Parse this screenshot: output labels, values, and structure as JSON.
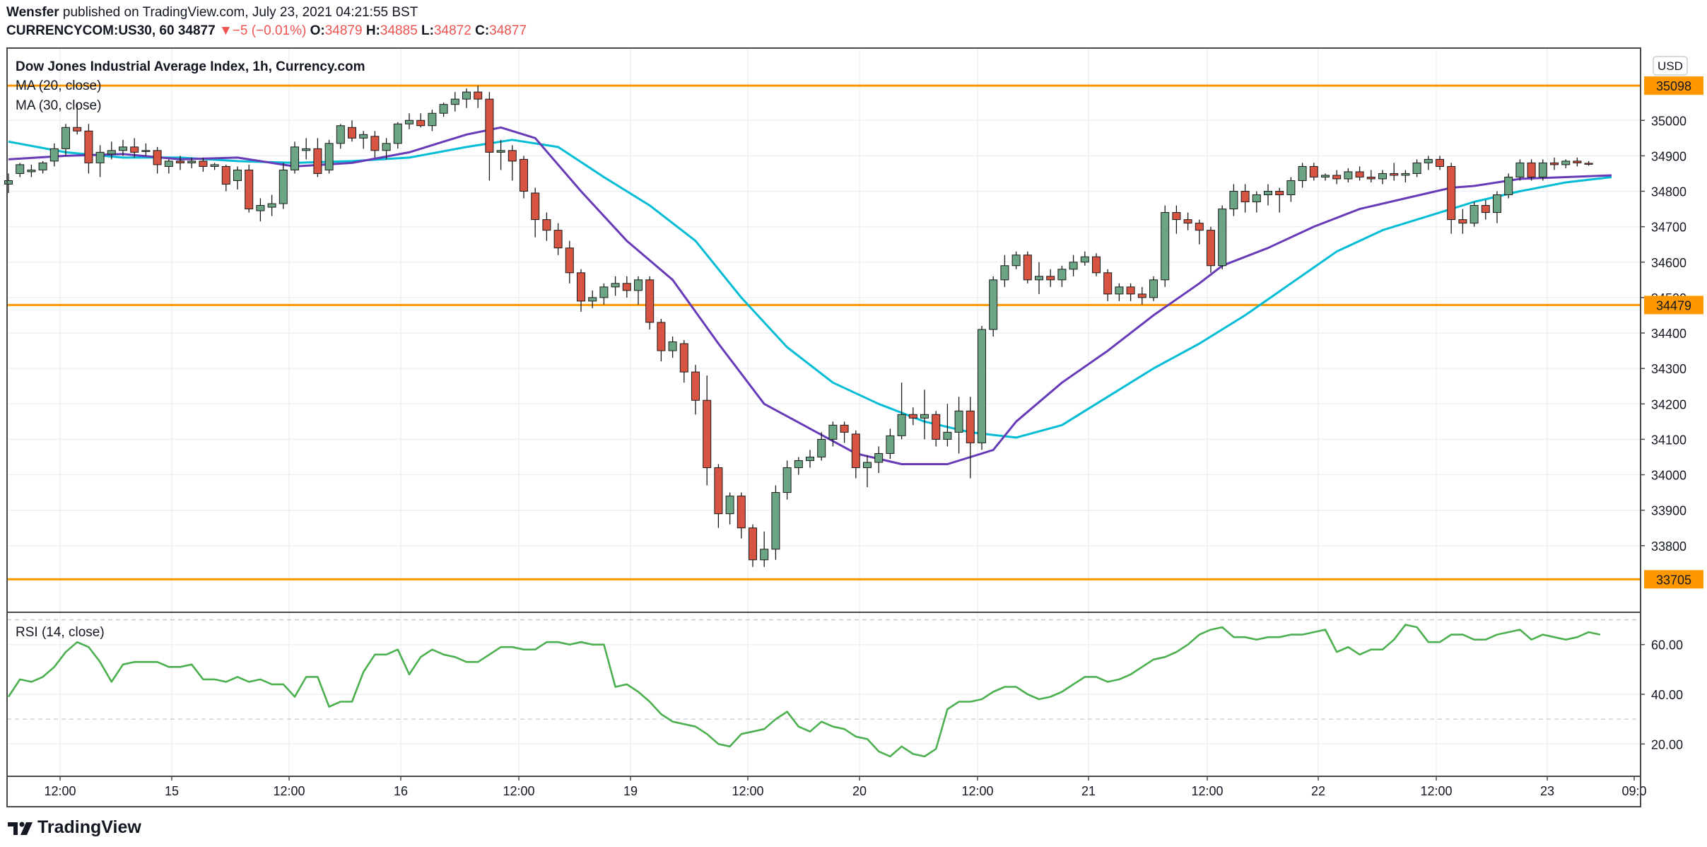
{
  "header": {
    "author": "Wensfer",
    "published_text": "published on TradingView.com, July 23, 2021 04:21:55 BST",
    "symbol": "CURRENCYCOM:US30, 60",
    "last": "34877",
    "change": "−5 (−0.01%)",
    "o_label": "O:",
    "o_value": "34879",
    "h_label": "H:",
    "h_value": "34885",
    "l_label": "L:",
    "l_value": "34872",
    "c_label": "C:",
    "c_value": "34877"
  },
  "legend": {
    "title": "Dow Jones Industrial Average Index, 1h, Currency.com",
    "ma20": "MA (20, close)",
    "ma30": "MA (30, close)",
    "rsi": "RSI (14, close)"
  },
  "currency_badge": "USD",
  "footer": {
    "logo_text": "TradingView"
  },
  "colors": {
    "up": "#6ba583",
    "down": "#d75442",
    "ma20": "#673ab7",
    "ma30": "#00bcd4",
    "rsi": "#4caf50",
    "hline": "#ff9800",
    "grid": "#eef0f3",
    "border": "#4a4a4a",
    "text": "#131722"
  },
  "chart_data": {
    "type": "candlestick",
    "price_axis_ticks": [
      34900,
      34800,
      34700,
      34600,
      34500,
      34400,
      34300,
      34200,
      34100,
      34000,
      33900,
      33800,
      35000
    ],
    "price_axis_labels": [
      "34900",
      "34800",
      "34700",
      "34600",
      "34500",
      "34400",
      "34300",
      "34200",
      "34100",
      "34000",
      "33900",
      "33800",
      "35000"
    ],
    "ylim": [
      33612,
      35204
    ],
    "horizontal_levels": [
      35098,
      34479,
      33705
    ],
    "horizontal_level_labels": [
      "35098",
      "34479",
      "33705"
    ],
    "time_axis_labels": [
      "12:00",
      "15",
      "12:00",
      "16",
      "12:00",
      "19",
      "12:00",
      "20",
      "12:00",
      "21",
      "12:00",
      "22",
      "12:00",
      "23",
      "09:0"
    ],
    "candles": [
      [
        34820,
        34850,
        34795,
        34830
      ],
      [
        34850,
        34880,
        34840,
        34875
      ],
      [
        34855,
        34875,
        34840,
        34860
      ],
      [
        34860,
        34885,
        34850,
        34880
      ],
      [
        34885,
        34935,
        34870,
        34920
      ],
      [
        34920,
        34990,
        34900,
        34980
      ],
      [
        34980,
        35050,
        34960,
        34970
      ],
      [
        34970,
        34990,
        34850,
        34880
      ],
      [
        34880,
        34930,
        34840,
        34910
      ],
      [
        34905,
        34940,
        34890,
        34915
      ],
      [
        34915,
        34945,
        34900,
        34925
      ],
      [
        34925,
        34950,
        34895,
        34910
      ],
      [
        34915,
        34935,
        34900,
        34915
      ],
      [
        34915,
        34925,
        34850,
        34875
      ],
      [
        34870,
        34890,
        34850,
        34885
      ],
      [
        34885,
        34900,
        34860,
        34880
      ],
      [
        34880,
        34895,
        34865,
        34885
      ],
      [
        34885,
        34895,
        34855,
        34870
      ],
      [
        34870,
        34880,
        34860,
        34875
      ],
      [
        34870,
        34875,
        34800,
        34820
      ],
      [
        34830,
        34870,
        34805,
        34860
      ],
      [
        34860,
        34875,
        34740,
        34750
      ],
      [
        34745,
        34780,
        34715,
        34760
      ],
      [
        34755,
        34790,
        34730,
        34765
      ],
      [
        34765,
        34880,
        34750,
        34860
      ],
      [
        34860,
        34940,
        34850,
        34925
      ],
      [
        34915,
        34950,
        34890,
        34920
      ],
      [
        34920,
        34950,
        34840,
        34850
      ],
      [
        34860,
        34945,
        34850,
        34935
      ],
      [
        34935,
        34990,
        34920,
        34985
      ],
      [
        34980,
        35000,
        34940,
        34950
      ],
      [
        34950,
        34970,
        34920,
        34960
      ],
      [
        34955,
        34970,
        34895,
        34915
      ],
      [
        34915,
        34950,
        34890,
        34935
      ],
      [
        34935,
        34995,
        34920,
        34990
      ],
      [
        34990,
        35020,
        34975,
        35000
      ],
      [
        35000,
        35020,
        34980,
        34985
      ],
      [
        34985,
        35030,
        34970,
        35020
      ],
      [
        35020,
        35050,
        35010,
        35045
      ],
      [
        35045,
        35080,
        35025,
        35060
      ],
      [
        35060,
        35090,
        35035,
        35080
      ],
      [
        35080,
        35098,
        35035,
        35060
      ],
      [
        35060,
        35080,
        34830,
        34910
      ],
      [
        34910,
        34945,
        34860,
        34915
      ],
      [
        34915,
        34930,
        34830,
        34885
      ],
      [
        34890,
        34900,
        34780,
        34800
      ],
      [
        34795,
        34810,
        34670,
        34720
      ],
      [
        34720,
        34740,
        34660,
        34690
      ],
      [
        34690,
        34710,
        34620,
        34640
      ],
      [
        34640,
        34660,
        34540,
        34570
      ],
      [
        34570,
        34580,
        34460,
        34490
      ],
      [
        34490,
        34520,
        34470,
        34500
      ],
      [
        34500,
        34540,
        34480,
        34530
      ],
      [
        34530,
        34560,
        34505,
        34540
      ],
      [
        34540,
        34560,
        34500,
        34520
      ],
      [
        34520,
        34560,
        34480,
        34550
      ],
      [
        34550,
        34560,
        34410,
        34430
      ],
      [
        34430,
        34440,
        34320,
        34350
      ],
      [
        34350,
        34390,
        34330,
        34375
      ],
      [
        34370,
        34380,
        34260,
        34290
      ],
      [
        34290,
        34310,
        34170,
        34210
      ],
      [
        34210,
        34280,
        33970,
        34020
      ],
      [
        34020,
        34030,
        33850,
        33890
      ],
      [
        33890,
        33950,
        33860,
        33940
      ],
      [
        33940,
        33950,
        33820,
        33850
      ],
      [
        33850,
        33860,
        33740,
        33760
      ],
      [
        33760,
        33840,
        33740,
        33790
      ],
      [
        33790,
        33970,
        33760,
        33950
      ],
      [
        33950,
        34040,
        33930,
        34020
      ],
      [
        34020,
        34050,
        34000,
        34040
      ],
      [
        34040,
        34070,
        34020,
        34050
      ],
      [
        34050,
        34120,
        34040,
        34100
      ],
      [
        34100,
        34150,
        34080,
        34140
      ],
      [
        34140,
        34150,
        34090,
        34120
      ],
      [
        34115,
        34125,
        33990,
        34020
      ],
      [
        34020,
        34055,
        33965,
        34035
      ],
      [
        34035,
        34080,
        34005,
        34060
      ],
      [
        34060,
        34130,
        34045,
        34110
      ],
      [
        34110,
        34260,
        34100,
        34170
      ],
      [
        34170,
        34190,
        34140,
        34160
      ],
      [
        34160,
        34240,
        34100,
        34170
      ],
      [
        34170,
        34180,
        34080,
        34100
      ],
      [
        34100,
        34200,
        34080,
        34120
      ],
      [
        34120,
        34220,
        34060,
        34180
      ],
      [
        34180,
        34220,
        33990,
        34090
      ],
      [
        34090,
        34420,
        34070,
        34410
      ],
      [
        34410,
        34560,
        34390,
        34550
      ],
      [
        34550,
        34620,
        34530,
        34590
      ],
      [
        34590,
        34630,
        34580,
        34620
      ],
      [
        34620,
        34630,
        34540,
        34550
      ],
      [
        34550,
        34600,
        34510,
        34560
      ],
      [
        34560,
        34580,
        34530,
        34550
      ],
      [
        34550,
        34590,
        34530,
        34580
      ],
      [
        34580,
        34620,
        34560,
        34600
      ],
      [
        34600,
        34630,
        34590,
        34615
      ],
      [
        34615,
        34625,
        34560,
        34570
      ],
      [
        34570,
        34580,
        34490,
        34510
      ],
      [
        34510,
        34540,
        34490,
        34530
      ],
      [
        34530,
        34540,
        34490,
        34510
      ],
      [
        34510,
        34530,
        34480,
        34500
      ],
      [
        34500,
        34560,
        34490,
        34550
      ],
      [
        34550,
        34760,
        34530,
        34740
      ],
      [
        34740,
        34760,
        34680,
        34720
      ],
      [
        34720,
        34740,
        34690,
        34710
      ],
      [
        34710,
        34720,
        34650,
        34690
      ],
      [
        34690,
        34700,
        34570,
        34590
      ],
      [
        34590,
        34760,
        34580,
        34750
      ],
      [
        34750,
        34820,
        34730,
        34800
      ],
      [
        34800,
        34820,
        34740,
        34770
      ],
      [
        34770,
        34800,
        34740,
        34790
      ],
      [
        34790,
        34820,
        34760,
        34800
      ],
      [
        34800,
        34810,
        34740,
        34790
      ],
      [
        34790,
        34840,
        34770,
        34830
      ],
      [
        34830,
        34880,
        34810,
        34870
      ],
      [
        34870,
        34880,
        34830,
        34840
      ],
      [
        34840,
        34850,
        34830,
        34845
      ],
      [
        34845,
        34860,
        34820,
        34835
      ],
      [
        34835,
        34865,
        34825,
        34855
      ],
      [
        34855,
        34870,
        34830,
        34840
      ],
      [
        34840,
        34860,
        34825,
        34835
      ],
      [
        34835,
        34860,
        34820,
        34850
      ],
      [
        34850,
        34880,
        34830,
        34845
      ],
      [
        34845,
        34860,
        34825,
        34850
      ],
      [
        34850,
        34890,
        34840,
        34880
      ],
      [
        34880,
        34900,
        34860,
        34890
      ],
      [
        34890,
        34900,
        34860,
        34870
      ],
      [
        34870,
        34880,
        34680,
        34720
      ],
      [
        34720,
        34750,
        34680,
        34710
      ],
      [
        34710,
        34770,
        34700,
        34760
      ],
      [
        34760,
        34775,
        34720,
        34740
      ],
      [
        34740,
        34800,
        34710,
        34790
      ],
      [
        34790,
        34850,
        34780,
        34840
      ],
      [
        34840,
        34890,
        34830,
        34880
      ],
      [
        34880,
        34890,
        34830,
        34840
      ],
      [
        34840,
        34890,
        34830,
        34880
      ],
      [
        34880,
        34895,
        34860,
        34875
      ],
      [
        34875,
        34890,
        34865,
        34885
      ],
      [
        34885,
        34895,
        34870,
        34880
      ],
      [
        34879,
        34885,
        34872,
        34877
      ]
    ],
    "ma20": [
      [
        0,
        34890
      ],
      [
        5,
        34900
      ],
      [
        10,
        34905
      ],
      [
        15,
        34890
      ],
      [
        20,
        34895
      ],
      [
        25,
        34870
      ],
      [
        30,
        34880
      ],
      [
        35,
        34910
      ],
      [
        40,
        34960
      ],
      [
        43,
        34980
      ],
      [
        46,
        34950
      ],
      [
        50,
        34800
      ],
      [
        54,
        34660
      ],
      [
        58,
        34550
      ],
      [
        62,
        34370
      ],
      [
        66,
        34200
      ],
      [
        70,
        34130
      ],
      [
        74,
        34060
      ],
      [
        78,
        34030
      ],
      [
        82,
        34030
      ],
      [
        86,
        34070
      ],
      [
        88,
        34150
      ],
      [
        92,
        34260
      ],
      [
        96,
        34350
      ],
      [
        100,
        34450
      ],
      [
        104,
        34540
      ],
      [
        106,
        34590
      ],
      [
        110,
        34640
      ],
      [
        114,
        34700
      ],
      [
        118,
        34750
      ],
      [
        122,
        34780
      ],
      [
        126,
        34810
      ],
      [
        128,
        34815
      ],
      [
        132,
        34835
      ],
      [
        136,
        34840
      ],
      [
        140,
        34845
      ]
    ],
    "ma30": [
      [
        0,
        34940
      ],
      [
        5,
        34910
      ],
      [
        10,
        34895
      ],
      [
        15,
        34895
      ],
      [
        20,
        34885
      ],
      [
        25,
        34880
      ],
      [
        30,
        34885
      ],
      [
        35,
        34895
      ],
      [
        40,
        34925
      ],
      [
        44,
        34945
      ],
      [
        48,
        34925
      ],
      [
        52,
        34840
      ],
      [
        56,
        34760
      ],
      [
        60,
        34660
      ],
      [
        64,
        34500
      ],
      [
        68,
        34360
      ],
      [
        72,
        34260
      ],
      [
        76,
        34200
      ],
      [
        80,
        34150
      ],
      [
        84,
        34120
      ],
      [
        88,
        34105
      ],
      [
        92,
        34140
      ],
      [
        96,
        34220
      ],
      [
        100,
        34300
      ],
      [
        104,
        34370
      ],
      [
        108,
        34450
      ],
      [
        112,
        34540
      ],
      [
        116,
        34630
      ],
      [
        120,
        34690
      ],
      [
        124,
        34730
      ],
      [
        128,
        34770
      ],
      [
        132,
        34800
      ],
      [
        136,
        34825
      ],
      [
        140,
        34840
      ]
    ],
    "rsi_ylim": [
      7,
      73
    ],
    "rsi_ticks": [
      60,
      40,
      20
    ],
    "rsi_tick_labels": [
      "60.00",
      "40.00",
      "20.00"
    ],
    "rsi_bands": [
      70,
      30
    ],
    "rsi": [
      39,
      46,
      45,
      47,
      51,
      57,
      61,
      59,
      53,
      45,
      52,
      53,
      53,
      53,
      51,
      51,
      52,
      46,
      46,
      45,
      47,
      45,
      46,
      44,
      44,
      39,
      47,
      47,
      35,
      37,
      37,
      49,
      56,
      56,
      58,
      48,
      55,
      58,
      56,
      55,
      53,
      53,
      56,
      59,
      59,
      58,
      58,
      61,
      61,
      60,
      61,
      60,
      60,
      43,
      44,
      41,
      37,
      32,
      29,
      28,
      27,
      24,
      20,
      19,
      24,
      25,
      26,
      30,
      33,
      27,
      25,
      29,
      27,
      26,
      23,
      22,
      17,
      15,
      19,
      16,
      15,
      18,
      34,
      37,
      37,
      38,
      41,
      43,
      43,
      40,
      38,
      39,
      41,
      44,
      47,
      47,
      45,
      46,
      48,
      51,
      54,
      55,
      57,
      60,
      64,
      66,
      67,
      63,
      63,
      62,
      63,
      63,
      64,
      64,
      65,
      66,
      57,
      59,
      56,
      58,
      58,
      62,
      68,
      67,
      61,
      61,
      64,
      64,
      62,
      62,
      64,
      65,
      66,
      62,
      64,
      63,
      62,
      63,
      65,
      64
    ]
  }
}
